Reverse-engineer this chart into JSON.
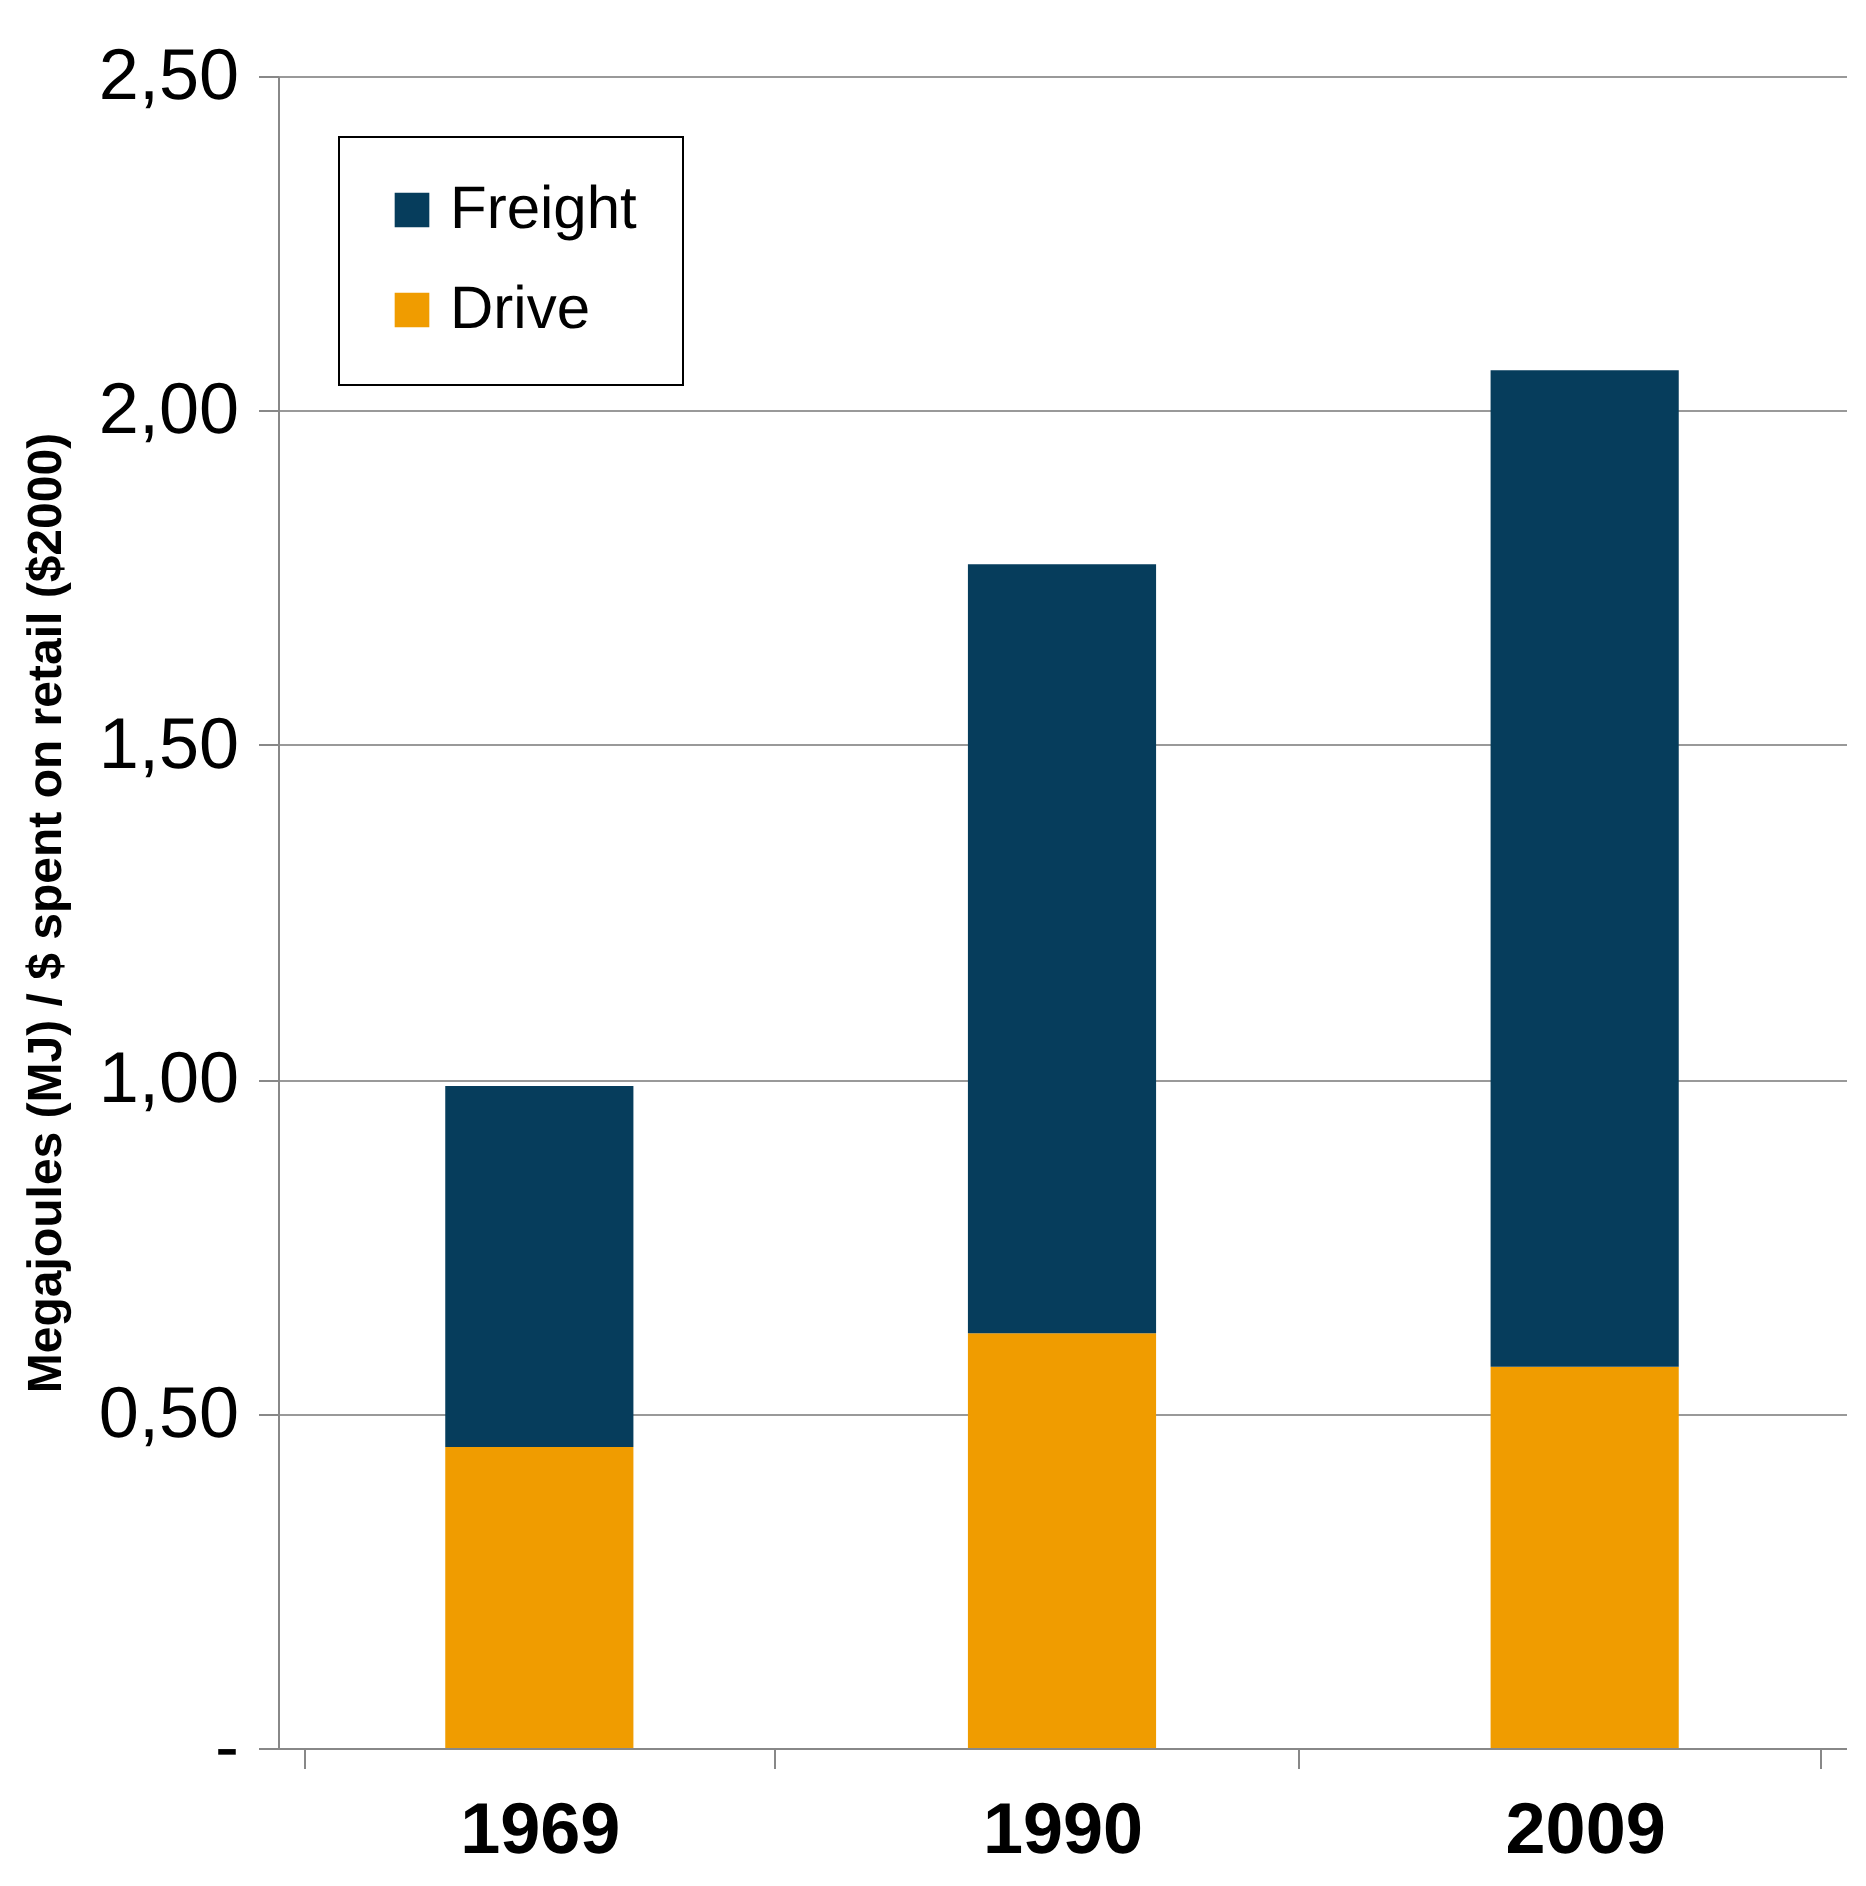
{
  "chart_data": {
    "type": "bar",
    "ylabel": "Megajoules (MJ) / $ spent on retail ($2000)",
    "categories": [
      "1969",
      "1990",
      "2009"
    ],
    "stacked": true,
    "series": [
      {
        "name": "Drive",
        "color": "#f09c00",
        "values": [
          0.45,
          0.62,
          0.57
        ]
      },
      {
        "name": "Freight",
        "color": "#063d5c",
        "values": [
          0.54,
          1.15,
          1.49
        ]
      }
    ],
    "ylim": [
      0,
      2.5
    ],
    "yticks": [
      {
        "value": 0,
        "label": "-"
      },
      {
        "value": 0.5,
        "label": "0,50"
      },
      {
        "value": 1,
        "label": "1,00"
      },
      {
        "value": 1.5,
        "label": "1,50"
      },
      {
        "value": 2,
        "label": "2,00"
      },
      {
        "value": 2.5,
        "label": "2,50"
      }
    ],
    "grid": "y",
    "legend": "top left"
  }
}
